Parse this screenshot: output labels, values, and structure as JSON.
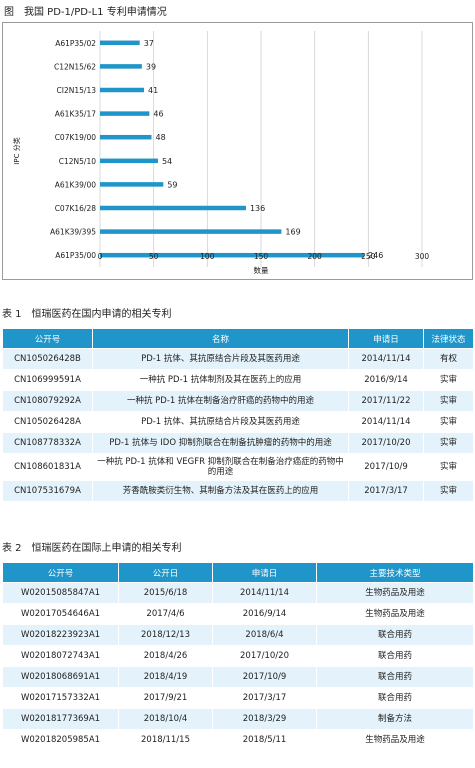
{
  "figure": {
    "title": "图　我国 PD-1/PD-L1 专利申请情况"
  },
  "chart_data": {
    "type": "bar",
    "orientation": "horizontal",
    "categories": [
      "A61P35/02",
      "C12N15/62",
      "CI2N15/13",
      "A61K35/17",
      "C07K19/00",
      "C12N5/10",
      "A61K39/00",
      "C07K16/28",
      "A61K39/395",
      "A61P35/00"
    ],
    "values": [
      37,
      39,
      41,
      46,
      48,
      54,
      59,
      136,
      169,
      246
    ],
    "xlabel": "数量",
    "ylabel": "IPC 分类",
    "xlim": [
      0,
      300
    ],
    "xticks": [
      "0",
      "50",
      "100",
      "150",
      "200",
      "250",
      "300"
    ],
    "grid": "vertical",
    "bar_color": "#1f95c9"
  },
  "table1": {
    "title": "表 1　恒瑞医药在国内申请的相关专利",
    "headers": [
      "公开号",
      "名称",
      "申请日",
      "法律状态"
    ],
    "rows": [
      [
        "CN105026428B",
        "PD-1 抗体、其抗原结合片段及其医药用途",
        "2014/11/14",
        "有权"
      ],
      [
        "CN106999591A",
        "一种抗 PD-1 抗体制剂及其在医药上的应用",
        "2016/9/14",
        "实审"
      ],
      [
        "CN108079292A",
        "一种抗 PD-1 抗体在制备治疗肝癌的药物中的用途",
        "2017/11/22",
        "实审"
      ],
      [
        "CN105026428A",
        "PD-1 抗体、其抗原结合片段及其医药用途",
        "2014/11/14",
        "实审"
      ],
      [
        "CN108778332A",
        "PD-1 抗体与 IDO 抑制剂联合在制备抗肿瘤的药物中的用途",
        "2017/10/20",
        "实审"
      ],
      [
        "CN108601831A",
        "一种抗 PD-1 抗体和 VEGFR 抑制剂联合在制备治疗癌症的药物中的用途",
        "2017/10/9",
        "实审"
      ],
      [
        "CN107531679A",
        "芳香酰胺类衍生物、其制备方法及其在医药上的应用",
        "2017/3/17",
        "实审"
      ]
    ]
  },
  "table2": {
    "title": "表 2　恒瑞医药在国际上申请的相关专利",
    "headers": [
      "公开号",
      "公开日",
      "申请日",
      "主要技术类型"
    ],
    "rows": [
      [
        "W02015085847A1",
        "2015/6/18",
        "2014/11/14",
        "生物药品及用途"
      ],
      [
        "W02017054646A1",
        "2017/4/6",
        "2016/9/14",
        "生物药品及用途"
      ],
      [
        "W02018223923A1",
        "2018/12/13",
        "2018/6/4",
        "联合用药"
      ],
      [
        "W02018072743A1",
        "2018/4/26",
        "2017/10/20",
        "联合用药"
      ],
      [
        "W02018068691A1",
        "2018/4/19",
        "2017/10/9",
        "联合用药"
      ],
      [
        "W02017157332A1",
        "2017/9/21",
        "2017/3/17",
        "联合用药"
      ],
      [
        "W02018177369A1",
        "2018/10/4",
        "2018/3/29",
        "制备方法"
      ],
      [
        "W02018205985A1",
        "2018/11/15",
        "2018/5/11",
        "生物药品及用途"
      ]
    ]
  }
}
